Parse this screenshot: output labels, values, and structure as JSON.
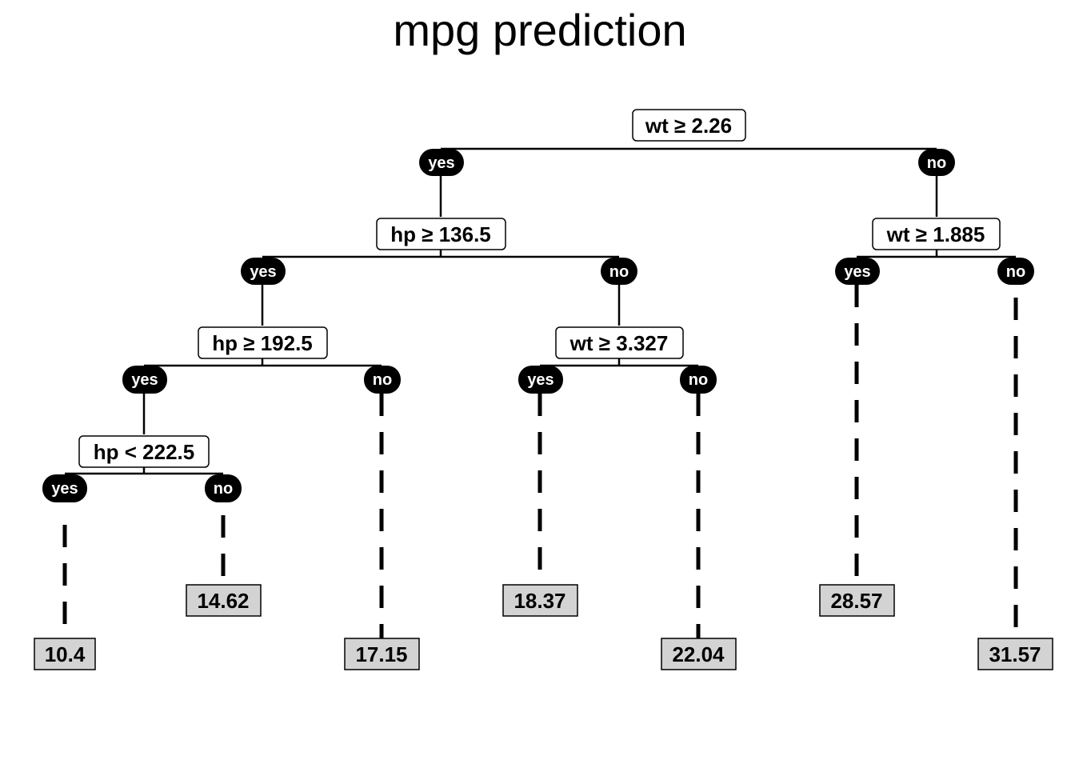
{
  "title": "mpg prediction",
  "branch_labels": {
    "yes": "yes",
    "no": "no"
  },
  "splits": {
    "root": "wt ≥ 2.26",
    "left": "hp ≥ 136.5",
    "right": "wt ≥ 1.885",
    "left_left": "hp ≥ 192.5",
    "left_right": "wt ≥ 3.327",
    "left_left_left": "hp < 222.5"
  },
  "leaves": {
    "l1": "10.4",
    "l2": "14.62",
    "l3": "17.15",
    "l4": "18.37",
    "l5": "22.04",
    "l6": "28.57",
    "l7": "31.57"
  },
  "colors": {
    "leaf_fill": "#d3d3d3",
    "badge": "#000000"
  }
}
